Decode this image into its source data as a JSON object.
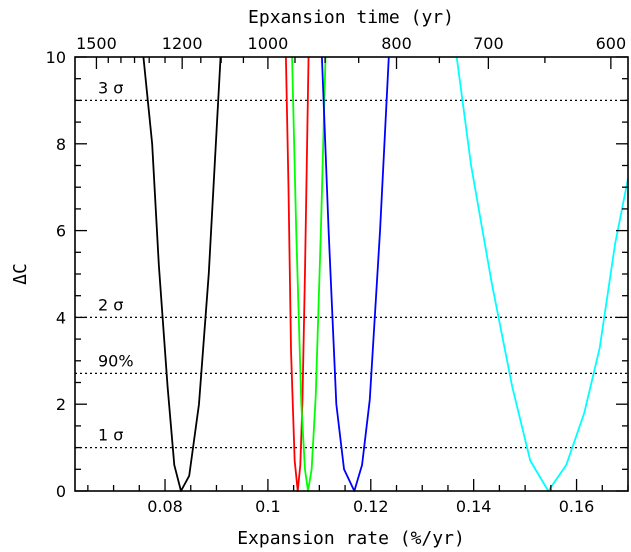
{
  "chart_data": {
    "type": "line",
    "title": "",
    "xlabel": "Expansion rate (%/yr)",
    "ylabel": "ΔC",
    "top_xlabel": "Epxansion time (yr)",
    "xlim": [
      0.0625,
      0.17
    ],
    "ylim": [
      0,
      10
    ],
    "x_ticks": [
      0.08,
      0.1,
      0.12,
      0.14,
      0.16
    ],
    "x_tick_labels": [
      "0.08",
      "0.1",
      "0.12",
      "0.14",
      "0.16"
    ],
    "y_ticks": [
      0,
      2,
      4,
      6,
      8,
      10
    ],
    "y_tick_labels": [
      "0",
      "2",
      "4",
      "6",
      "8",
      "10"
    ],
    "top_ticks": [
      {
        "value": 1500,
        "label": "1500"
      },
      {
        "value": 1200,
        "label": "1200"
      },
      {
        "value": 1000,
        "label": "1000"
      },
      {
        "value": 800,
        "label": "800"
      },
      {
        "value": 700,
        "label": "700"
      },
      {
        "value": 600,
        "label": "600"
      }
    ],
    "reference_lines": [
      {
        "y": 9.0,
        "label": "3 σ"
      },
      {
        "y": 4.0,
        "label": "2 σ"
      },
      {
        "y": 2.71,
        "label": "90%"
      },
      {
        "y": 1.0,
        "label": "1 σ"
      }
    ],
    "series": [
      {
        "color": "#000000",
        "points": [
          [
            0.0758,
            10.0
          ],
          [
            0.0775,
            8.0
          ],
          [
            0.0788,
            5.2
          ],
          [
            0.0805,
            2.4
          ],
          [
            0.0818,
            0.6
          ],
          [
            0.0831,
            0.0
          ],
          [
            0.0847,
            0.35
          ],
          [
            0.0866,
            2.0
          ],
          [
            0.0885,
            5.0
          ],
          [
            0.0908,
            10.0
          ]
        ]
      },
      {
        "color": "#ff0000",
        "points": [
          [
            0.1035,
            10.0
          ],
          [
            0.104,
            7.0
          ],
          [
            0.1045,
            3.2
          ],
          [
            0.1052,
            0.7
          ],
          [
            0.1058,
            0.0
          ],
          [
            0.1063,
            0.6
          ],
          [
            0.1067,
            2.0
          ],
          [
            0.1072,
            5.0
          ],
          [
            0.1079,
            10.0
          ]
        ]
      },
      {
        "color": "#00ff00",
        "points": [
          [
            0.1047,
            10.0
          ],
          [
            0.1055,
            6.0
          ],
          [
            0.1065,
            2.0
          ],
          [
            0.1072,
            0.5
          ],
          [
            0.1078,
            0.0
          ],
          [
            0.1085,
            0.5
          ],
          [
            0.1093,
            2.2
          ],
          [
            0.1103,
            6.0
          ],
          [
            0.1112,
            10.0
          ]
        ]
      },
      {
        "color": "#0000ff",
        "points": [
          [
            0.1105,
            10.0
          ],
          [
            0.1118,
            6.0
          ],
          [
            0.1133,
            2.0
          ],
          [
            0.1148,
            0.5
          ],
          [
            0.1168,
            0.0
          ],
          [
            0.1183,
            0.6
          ],
          [
            0.1198,
            2.1
          ],
          [
            0.1218,
            6.0
          ],
          [
            0.1235,
            10.0
          ]
        ]
      },
      {
        "color": "#00ffff",
        "points": [
          [
            0.1367,
            10.0
          ],
          [
            0.1395,
            7.5
          ],
          [
            0.1435,
            4.8
          ],
          [
            0.1475,
            2.4
          ],
          [
            0.151,
            0.7
          ],
          [
            0.1545,
            0.0
          ],
          [
            0.158,
            0.6
          ],
          [
            0.1615,
            1.8
          ],
          [
            0.1645,
            3.3
          ],
          [
            0.1675,
            5.7
          ],
          [
            0.17,
            7.2
          ]
        ]
      }
    ]
  }
}
